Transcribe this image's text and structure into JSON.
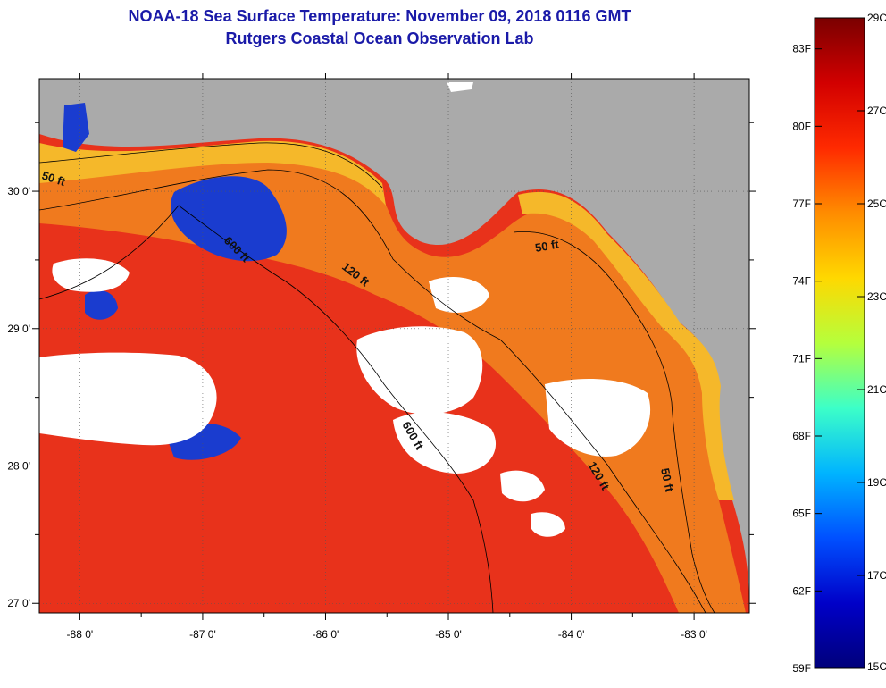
{
  "title": {
    "line1": "NOAA-18 Sea Surface Temperature:  November 09, 2018 0116 GMT",
    "line2": "Rutgers Coastal Ocean Observation Lab"
  },
  "map": {
    "lon_range": [
      -88.33,
      -82.55
    ],
    "lat_range": [
      26.93,
      30.82
    ],
    "lon_ticks": [
      {
        "value": -88,
        "label": "-88 0'"
      },
      {
        "value": -87,
        "label": "-87 0'"
      },
      {
        "value": -86,
        "label": "-86 0'"
      },
      {
        "value": -85,
        "label": "-85 0'"
      },
      {
        "value": -84,
        "label": "-84 0'"
      },
      {
        "value": -83,
        "label": "-83 0'"
      }
    ],
    "lat_ticks": [
      {
        "value": 30,
        "label": "30 0'"
      },
      {
        "value": 29,
        "label": "29 0'"
      },
      {
        "value": 28,
        "label": "28 0'"
      },
      {
        "value": 27,
        "label": "27 0'"
      }
    ],
    "colors": {
      "land": "#aaaaaa",
      "cloud": "#ffffff",
      "warm_gulf": "#e8321b",
      "shelf": "#f07a1e",
      "coastal": "#f5b82a",
      "cold": "#1a3ccf"
    },
    "contours": [
      {
        "label": "50 ft"
      },
      {
        "label": "600 ft"
      },
      {
        "label": "120 ft"
      },
      {
        "label": "50 ft"
      },
      {
        "label": "600 ft"
      },
      {
        "label": "120 ft"
      },
      {
        "label": "50 ft"
      }
    ]
  },
  "colorbar": {
    "min_c": 15,
    "max_c": 29,
    "celsius_labels": [
      "29C",
      "27C",
      "25C",
      "23C",
      "21C",
      "19C",
      "17C",
      "15C"
    ],
    "fahrenheit_labels": [
      "83F",
      "80F",
      "77F",
      "74F",
      "71F",
      "68F",
      "65F",
      "62F",
      "59F"
    ],
    "gradient": [
      "#7a0000",
      "#d20000",
      "#ff2a00",
      "#ff8c00",
      "#ffd800",
      "#b5ff3c",
      "#3cffc8",
      "#00b4ff",
      "#0050ff",
      "#0000c8",
      "#00007a"
    ]
  }
}
